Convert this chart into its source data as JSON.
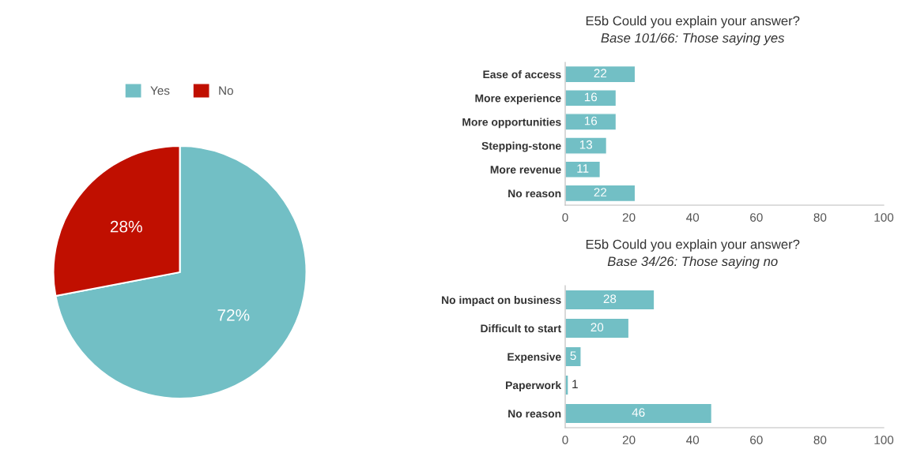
{
  "chart_data": [
    {
      "type": "pie",
      "categories": [
        "Yes",
        "No"
      ],
      "values": [
        72,
        28
      ],
      "colors": [
        "#72bfc5",
        "#c00f00"
      ],
      "value_labels": [
        "72%",
        "28%"
      ],
      "legend": "top"
    },
    {
      "type": "bar",
      "orientation": "horizontal",
      "title": "E5b Could you explain your answer?",
      "subtitle": "Base 101/66: Those saying yes",
      "categories": [
        "Ease of access",
        "More experience",
        "More opportunities",
        "Stepping-stone",
        "More revenue",
        "No reason"
      ],
      "values": [
        22,
        16,
        16,
        13,
        11,
        22
      ],
      "color": "#72bfc5",
      "xlim": [
        0,
        100
      ],
      "xticks": [
        0,
        20,
        40,
        60,
        80,
        100
      ],
      "data_labels": true
    },
    {
      "type": "bar",
      "orientation": "horizontal",
      "title": "E5b Could you explain your answer?",
      "subtitle": "Base 34/26: Those saying no",
      "categories": [
        "No impact on business",
        "Difficult to start",
        "Expensive",
        "Paperwork",
        "No reason"
      ],
      "values": [
        28,
        20,
        5,
        1,
        46
      ],
      "color": "#72bfc5",
      "xlim": [
        0,
        100
      ],
      "xticks": [
        0,
        20,
        40,
        60,
        80,
        100
      ],
      "data_labels": true
    }
  ]
}
